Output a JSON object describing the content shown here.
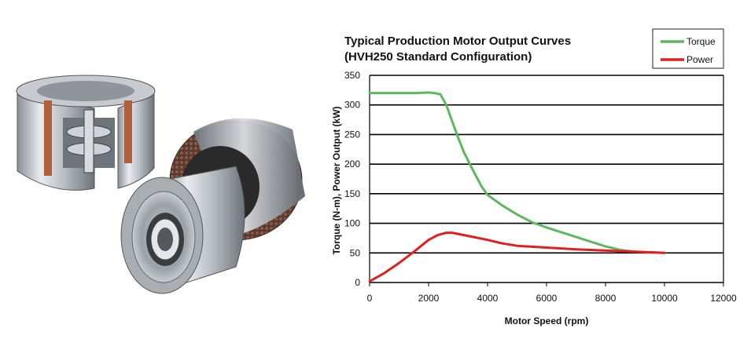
{
  "photo": {
    "description_icon": "motor-cutaway-and-rotor-stator-photo"
  },
  "chart_data": {
    "type": "line",
    "title": [
      "Typical Production Motor Output Curves",
      "(HVH250 Standard Configuration)"
    ],
    "xlabel": "Motor Speed (rpm)",
    "ylabel": "Torque (N-m), Power Output (kW)",
    "xlim": [
      0,
      12000
    ],
    "ylim": [
      0,
      350
    ],
    "xticks": [
      0,
      2000,
      4000,
      6000,
      8000,
      10000,
      12000
    ],
    "yticks": [
      0,
      50,
      100,
      150,
      200,
      250,
      300,
      350
    ],
    "grid": "horizontal",
    "legend": "top-right",
    "series": [
      {
        "name": "Torque",
        "color": "#5cb85c",
        "x": [
          0,
          500,
          1000,
          1500,
          2000,
          2200,
          2400,
          2600,
          2800,
          3000,
          3200,
          3500,
          3800,
          4000,
          4500,
          5000,
          5500,
          6000,
          6500,
          7000,
          7500,
          8000,
          8500,
          9000,
          9500,
          10000
        ],
        "y": [
          320,
          320,
          320,
          320,
          321,
          320,
          318,
          300,
          272,
          245,
          220,
          190,
          162,
          148,
          130,
          115,
          102,
          93,
          85,
          77,
          69,
          61,
          55,
          52,
          51,
          50
        ]
      },
      {
        "name": "Power",
        "color": "#e02020",
        "x": [
          0,
          500,
          1000,
          1500,
          2000,
          2300,
          2600,
          2800,
          3000,
          3500,
          4000,
          4500,
          5000,
          6000,
          7000,
          8000,
          9000,
          10000
        ],
        "y": [
          2,
          16,
          33,
          52,
          72,
          80,
          84,
          84,
          82,
          77,
          72,
          66,
          62,
          59,
          56,
          54,
          52,
          50
        ]
      }
    ]
  }
}
